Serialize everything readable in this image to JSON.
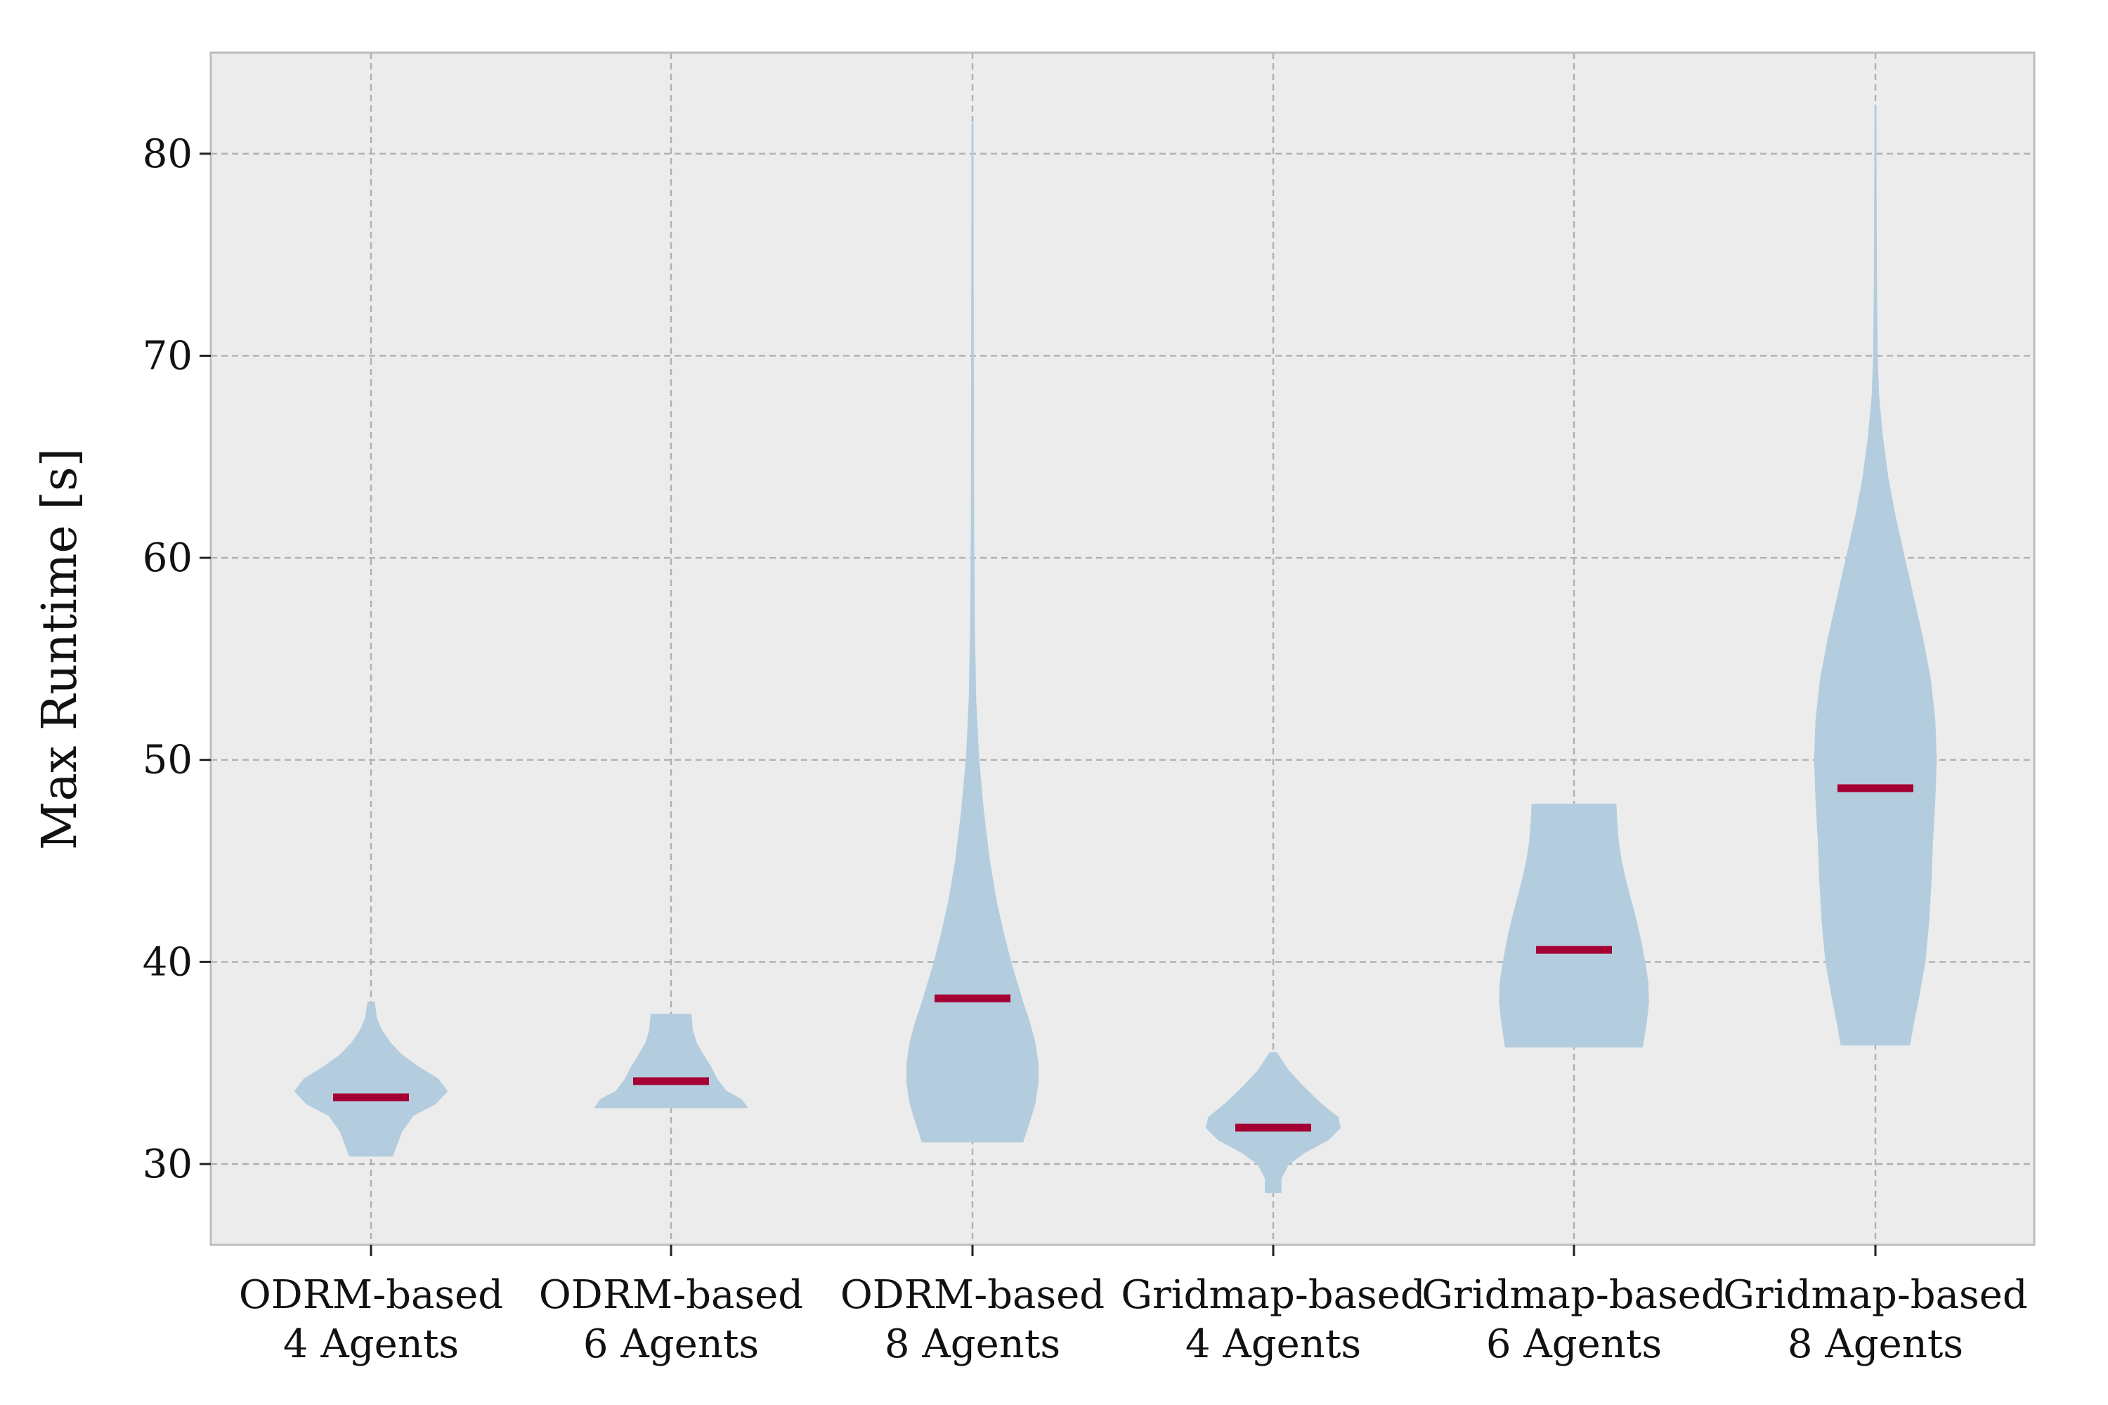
{
  "chart_data": {
    "type": "violin",
    "title": "",
    "xlabel": "",
    "ylabel": "Max Runtime [s]",
    "ylim": [
      26,
      85
    ],
    "yticks": [
      30,
      40,
      50,
      60,
      70,
      80
    ],
    "grid": true,
    "colors": {
      "plot_bg": "#ececec",
      "violin": "#b3cddf",
      "median": "#a50034",
      "grid": "#b0b0b0",
      "frame": "#bdbdbd"
    },
    "categories": [
      {
        "line1": "ODRM-based",
        "line2": "4 Agents"
      },
      {
        "line1": "ODRM-based",
        "line2": "6 Agents"
      },
      {
        "line1": "ODRM-based",
        "line2": "8 Agents"
      },
      {
        "line1": "Gridmap-based",
        "line2": "4 Agents"
      },
      {
        "line1": "Gridmap-based",
        "line2": "6 Agents"
      },
      {
        "line1": "Gridmap-based",
        "line2": "8 Agents"
      }
    ],
    "series": [
      {
        "min": 30.4,
        "max": 38.0,
        "median": 33.3,
        "density": [
          [
            30.4,
            0.28
          ],
          [
            31.0,
            0.34
          ],
          [
            31.6,
            0.4
          ],
          [
            32.4,
            0.55
          ],
          [
            33.0,
            0.85
          ],
          [
            33.6,
            1.0
          ],
          [
            34.2,
            0.88
          ],
          [
            34.8,
            0.62
          ],
          [
            35.4,
            0.4
          ],
          [
            36.0,
            0.25
          ],
          [
            36.6,
            0.14
          ],
          [
            37.2,
            0.07
          ],
          [
            38.0,
            0.04
          ]
        ]
      },
      {
        "min": 32.8,
        "max": 37.4,
        "median": 34.1,
        "density": [
          [
            32.8,
            1.0
          ],
          [
            33.2,
            0.92
          ],
          [
            33.6,
            0.72
          ],
          [
            34.2,
            0.6
          ],
          [
            34.8,
            0.52
          ],
          [
            35.4,
            0.42
          ],
          [
            36.0,
            0.33
          ],
          [
            36.6,
            0.28
          ],
          [
            37.4,
            0.26
          ]
        ]
      },
      {
        "min": 31.1,
        "max": 81.5,
        "median": 38.2,
        "density": [
          [
            31.1,
            0.66
          ],
          [
            32.0,
            0.74
          ],
          [
            33.0,
            0.82
          ],
          [
            34.0,
            0.86
          ],
          [
            35.0,
            0.86
          ],
          [
            36.0,
            0.82
          ],
          [
            37.0,
            0.75
          ],
          [
            38.0,
            0.66
          ],
          [
            39.0,
            0.58
          ],
          [
            40.0,
            0.5
          ],
          [
            41.5,
            0.4
          ],
          [
            43.0,
            0.31
          ],
          [
            45.0,
            0.22
          ],
          [
            47.5,
            0.14
          ],
          [
            50.0,
            0.08
          ],
          [
            53.0,
            0.04
          ],
          [
            57.0,
            0.02
          ],
          [
            62.0,
            0.012
          ],
          [
            70.0,
            0.008
          ],
          [
            81.5,
            0.004
          ]
        ]
      },
      {
        "min": 28.6,
        "max": 35.5,
        "median": 31.8,
        "density": [
          [
            28.6,
            0.1
          ],
          [
            29.3,
            0.1
          ],
          [
            30.0,
            0.2
          ],
          [
            30.6,
            0.42
          ],
          [
            31.2,
            0.72
          ],
          [
            31.8,
            0.88
          ],
          [
            32.3,
            0.85
          ],
          [
            33.0,
            0.62
          ],
          [
            33.8,
            0.4
          ],
          [
            34.6,
            0.2
          ],
          [
            35.5,
            0.04
          ]
        ]
      },
      {
        "min": 35.8,
        "max": 47.8,
        "median": 40.6,
        "density": [
          [
            35.8,
            0.9
          ],
          [
            37.0,
            0.95
          ],
          [
            38.0,
            0.98
          ],
          [
            39.0,
            0.97
          ],
          [
            40.0,
            0.93
          ],
          [
            41.0,
            0.88
          ],
          [
            42.0,
            0.82
          ],
          [
            43.0,
            0.75
          ],
          [
            44.0,
            0.68
          ],
          [
            45.0,
            0.62
          ],
          [
            46.0,
            0.58
          ],
          [
            47.0,
            0.56
          ],
          [
            47.8,
            0.55
          ]
        ]
      },
      {
        "min": 35.9,
        "max": 82.4,
        "median": 48.6,
        "density": [
          [
            35.9,
            0.45
          ],
          [
            37.0,
            0.5
          ],
          [
            38.5,
            0.58
          ],
          [
            40.0,
            0.65
          ],
          [
            42.0,
            0.7
          ],
          [
            44.0,
            0.73
          ],
          [
            46.0,
            0.75
          ],
          [
            48.0,
            0.78
          ],
          [
            50.0,
            0.8
          ],
          [
            52.0,
            0.78
          ],
          [
            54.0,
            0.72
          ],
          [
            56.0,
            0.62
          ],
          [
            58.0,
            0.5
          ],
          [
            60.0,
            0.38
          ],
          [
            62.0,
            0.26
          ],
          [
            64.0,
            0.16
          ],
          [
            66.0,
            0.09
          ],
          [
            68.0,
            0.04
          ],
          [
            70.0,
            0.02
          ],
          [
            74.0,
            0.01
          ],
          [
            82.4,
            0.004
          ]
        ]
      }
    ]
  }
}
